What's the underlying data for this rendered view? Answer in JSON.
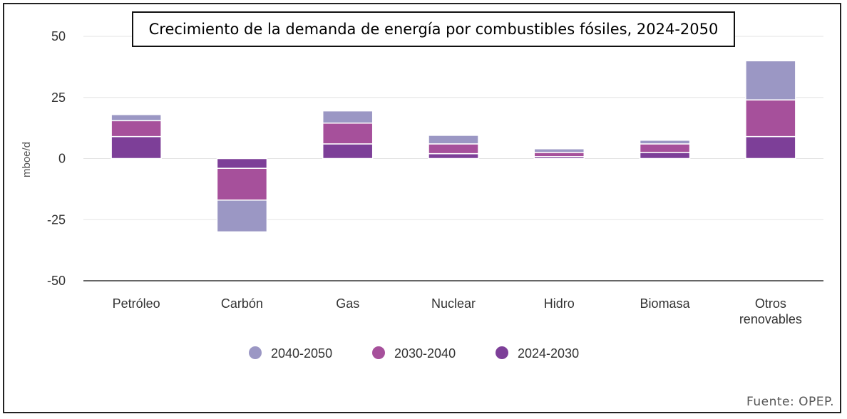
{
  "title": "Crecimiento de la demanda de energía por combustibles fósiles, 2024-2050",
  "source": "Fuente: OPEP.",
  "chart_data": {
    "type": "bar",
    "stacked": true,
    "categories": [
      "Petróleo",
      "Carbón",
      "Gas",
      "Nuclear",
      "Hidro",
      "Biomasa",
      "Otros renovables"
    ],
    "ylabel": "mboe/d",
    "xlabel": "",
    "ylim": [
      -50,
      50
    ],
    "yticks": [
      50,
      25,
      0,
      -25,
      -50
    ],
    "grid": true,
    "legend_position": "bottom",
    "series": [
      {
        "name": "2024-2030",
        "color": "#7d3f98",
        "values": [
          9,
          -4,
          6,
          2,
          0.8,
          2.5,
          9
        ]
      },
      {
        "name": "2030-2040",
        "color": "#a6509b",
        "values": [
          6.5,
          -13,
          8.5,
          4,
          1.7,
          3.5,
          15
        ]
      },
      {
        "name": "2040-2050",
        "color": "#9b97c4",
        "values": [
          2.5,
          -13,
          5,
          3.5,
          1.5,
          1.5,
          16
        ]
      }
    ],
    "legend_order": [
      "2040-2050",
      "2030-2040",
      "2024-2030"
    ]
  }
}
